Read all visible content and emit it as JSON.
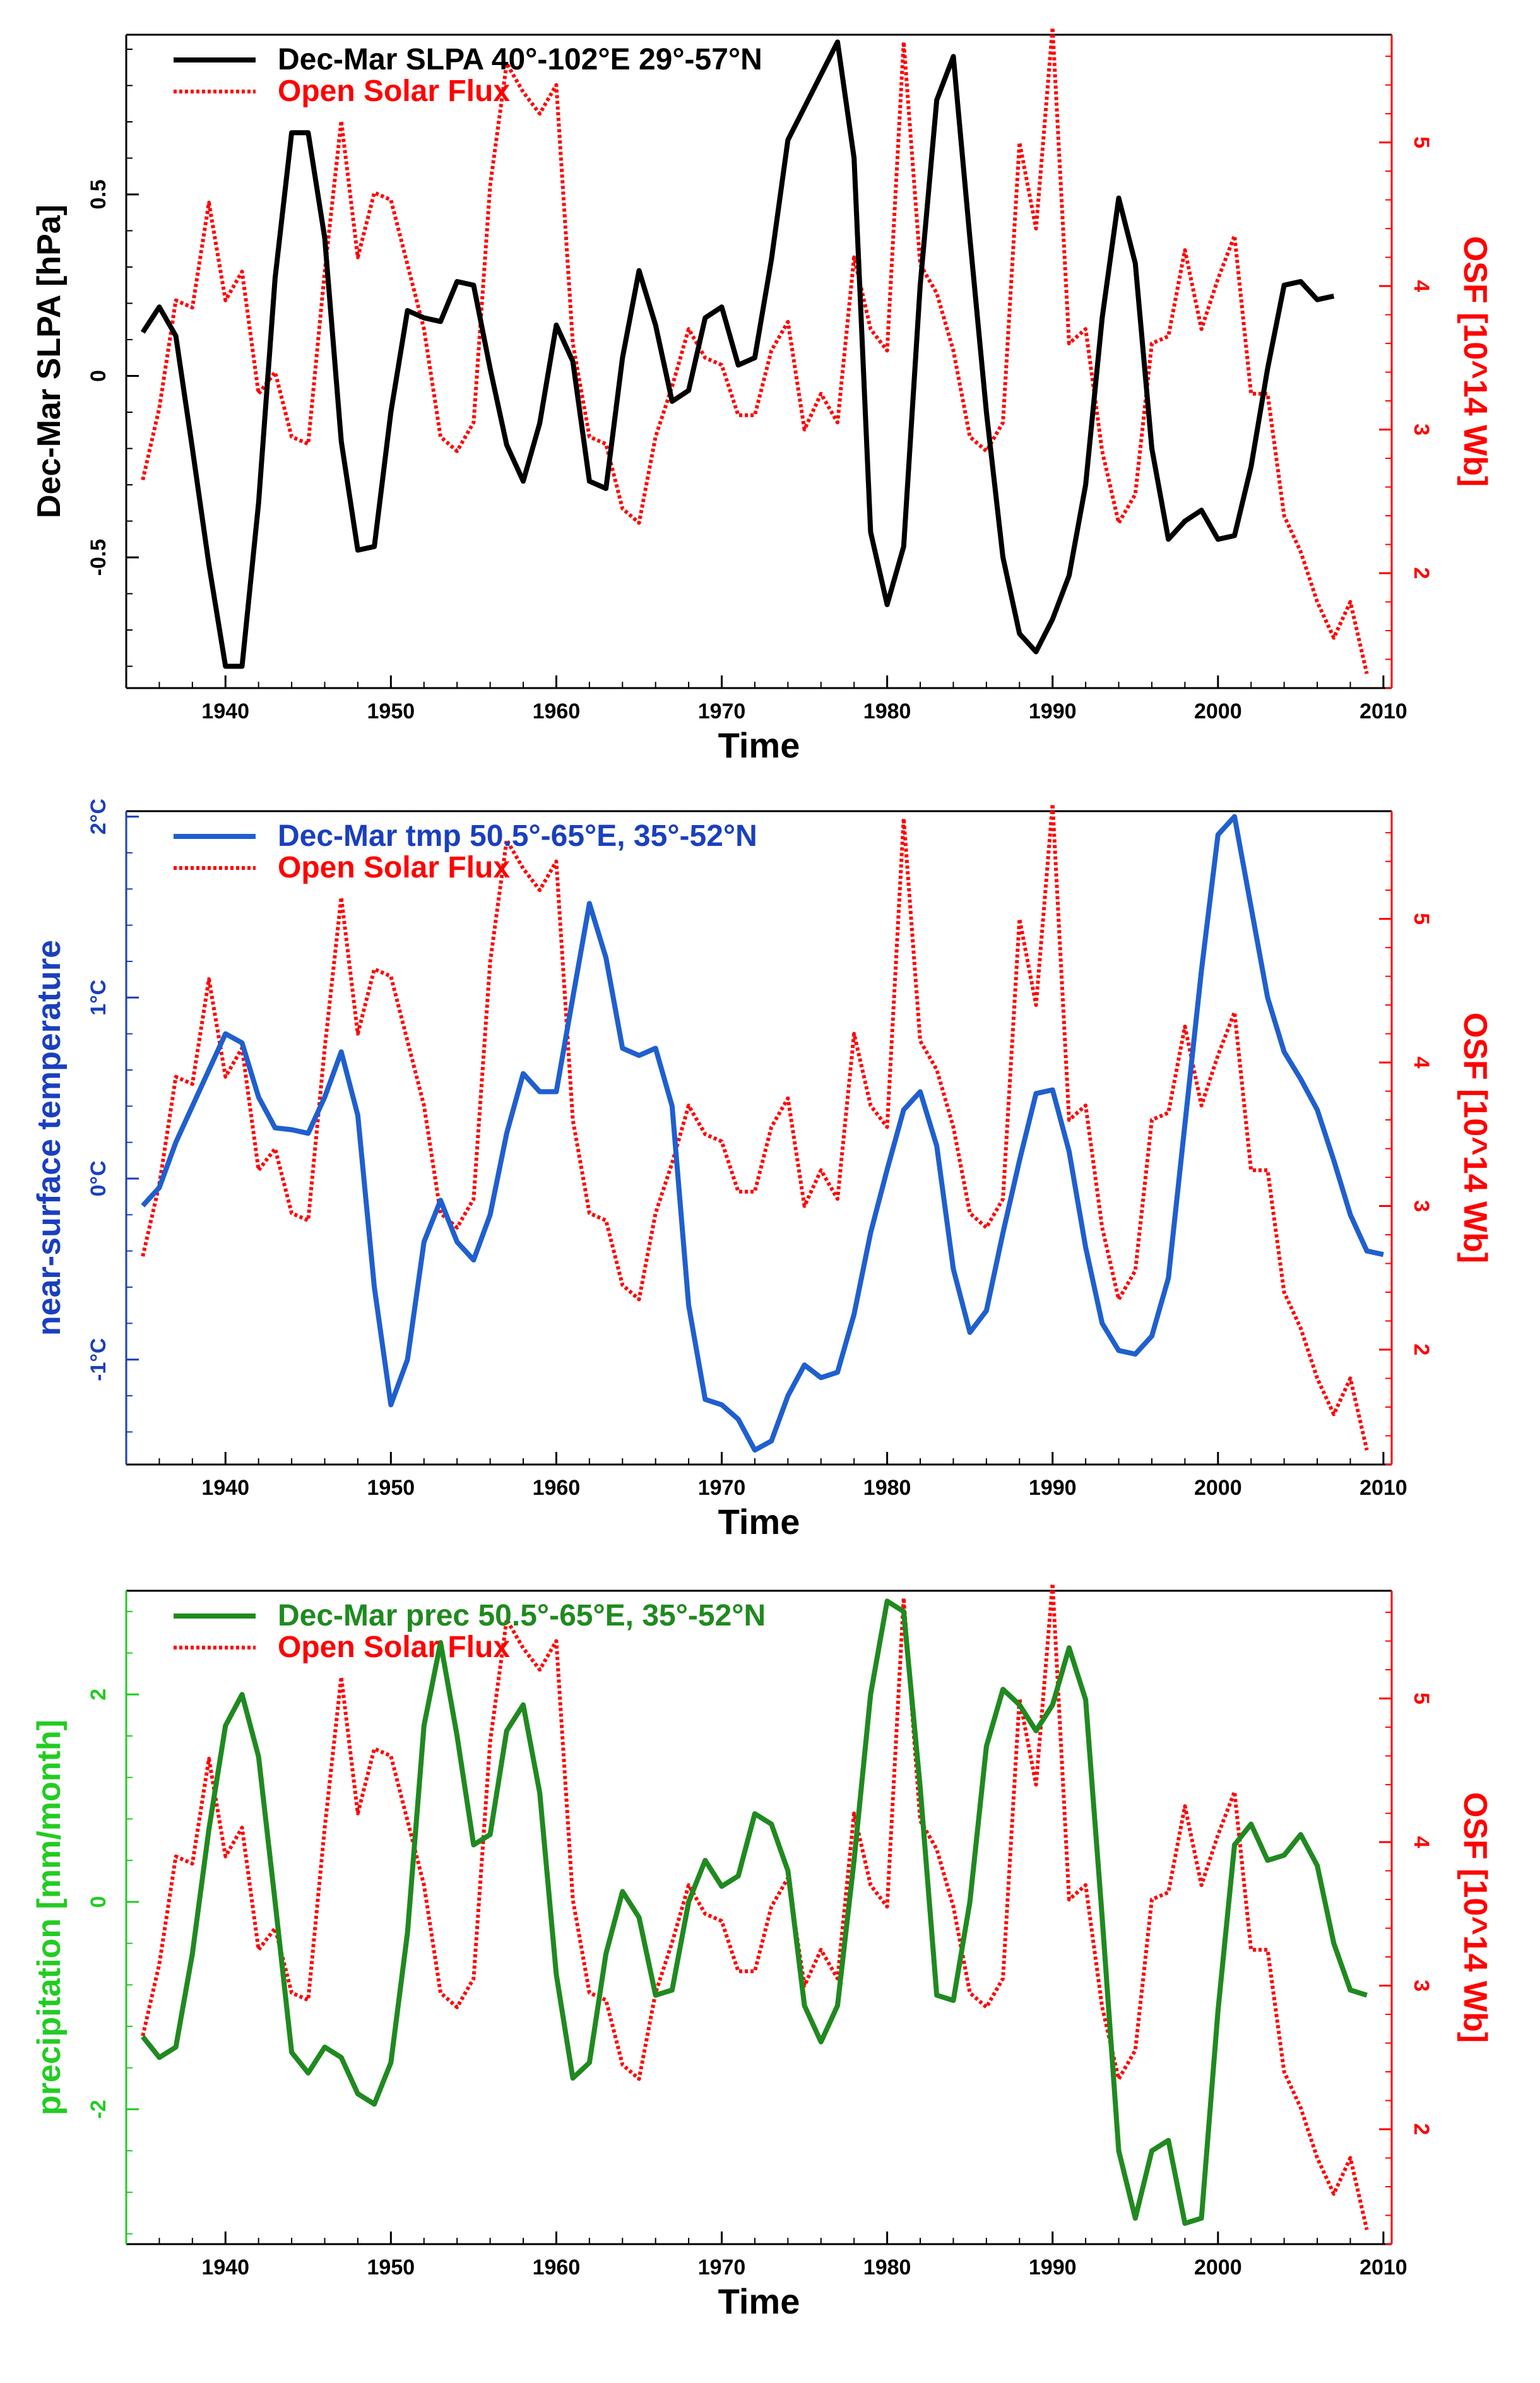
{
  "chart_data": [
    {
      "type": "line",
      "xlabel": "Time",
      "ylabel_left": "Dec-Mar SLPA [hPa]",
      "ylabel_right": "OSF [10^14 Wb]",
      "xlim": [
        1934,
        2010.5
      ],
      "ylim_left": [
        -0.86,
        0.94
      ],
      "ylim_right": [
        1.2,
        5.75
      ],
      "x_ticks": [
        1940,
        1950,
        1960,
        1970,
        1980,
        1990,
        2000,
        2010
      ],
      "x_tick_labels": [
        "1940",
        "1950",
        "1960",
        "1970",
        "1980",
        "1990",
        "2000",
        "2010"
      ],
      "y_left_ticks": [
        -0.5,
        0,
        0.5
      ],
      "y_left_tick_labels": [
        "-0.5",
        "0",
        "0.5"
      ],
      "y_right_ticks": [
        2,
        3,
        4,
        5
      ],
      "y_right_tick_labels": [
        "2",
        "3",
        "4",
        "5"
      ],
      "colors": {
        "main": "#000000",
        "osf": "#ff0000",
        "left_axis": "#000000",
        "right_axis": "#ff0000"
      },
      "series": [
        {
          "name": "Dec-Mar SLPA 40°-102°E 29°-57°N",
          "axis": "left",
          "style": "solid",
          "x_start": 1935,
          "values": [
            0.12,
            0.19,
            0.11,
            -0.2,
            -0.52,
            -0.8,
            -0.8,
            -0.35,
            0.27,
            0.67,
            0.67,
            0.38,
            -0.18,
            -0.48,
            -0.47,
            -0.1,
            0.18,
            0.16,
            0.15,
            0.26,
            0.25,
            0.02,
            -0.19,
            -0.29,
            -0.13,
            0.14,
            0.04,
            -0.29,
            -0.31,
            0.05,
            0.29,
            0.14,
            -0.07,
            -0.04,
            0.16,
            0.19,
            0.03,
            0.05,
            0.32,
            0.65,
            0.74,
            0.83,
            0.92,
            0.6,
            -0.43,
            -0.63,
            -0.47,
            0.25,
            0.76,
            0.88,
            0.38,
            -0.1,
            -0.5,
            -0.71,
            -0.76,
            -0.67,
            -0.55,
            -0.3,
            0.16,
            0.49,
            0.31,
            -0.2,
            -0.45,
            -0.4,
            -0.37,
            -0.45,
            -0.44,
            -0.25,
            0.02,
            0.25,
            0.26,
            0.21,
            0.22
          ]
        },
        {
          "name": "Open Solar Flux",
          "axis": "right",
          "style": "dotted",
          "x_start": 1935,
          "values": [
            2.65,
            3.15,
            3.9,
            3.85,
            4.58,
            3.9,
            4.1,
            3.25,
            3.4,
            2.95,
            2.9,
            4.1,
            5.15,
            4.2,
            4.65,
            4.6,
            4.15,
            3.7,
            2.95,
            2.85,
            3.05,
            4.7,
            5.55,
            5.35,
            5.2,
            5.4,
            3.6,
            2.95,
            2.9,
            2.45,
            2.35,
            2.95,
            3.3,
            3.7,
            3.5,
            3.45,
            3.1,
            3.1,
            3.55,
            3.75,
            3.0,
            3.25,
            3.05,
            4.2,
            3.7,
            3.55,
            5.7,
            4.15,
            3.95,
            3.55,
            2.95,
            2.85,
            3.05,
            5.0,
            4.4,
            5.8,
            3.6,
            3.7,
            2.85,
            2.35,
            2.55,
            3.6,
            3.65,
            4.25,
            3.7,
            4.05,
            4.35,
            3.25,
            3.25,
            2.4,
            2.15,
            1.8,
            1.55,
            1.8,
            1.3
          ]
        }
      ]
    },
    {
      "type": "line",
      "xlabel": "Time",
      "ylabel_left": "near-surface temperature",
      "ylabel_right": "OSF [10^14 Wb]",
      "xlim": [
        1934,
        2010.5
      ],
      "ylim_left": [
        -1.58,
        2.03
      ],
      "ylim_right": [
        1.2,
        5.75
      ],
      "x_ticks": [
        1940,
        1950,
        1960,
        1970,
        1980,
        1990,
        2000,
        2010
      ],
      "x_tick_labels": [
        "1940",
        "1950",
        "1960",
        "1970",
        "1980",
        "1990",
        "2000",
        "2010"
      ],
      "y_left_ticks": [
        -1,
        0,
        1,
        2
      ],
      "y_left_tick_labels": [
        "-1°C",
        "0°C",
        "1°C",
        "2°C"
      ],
      "y_right_ticks": [
        2,
        3,
        4,
        5
      ],
      "y_right_tick_labels": [
        "2",
        "3",
        "4",
        "5"
      ],
      "colors": {
        "main": "#1f5fcf",
        "osf": "#ff0000",
        "left_axis": "#1a3fbf",
        "right_axis": "#ff0000"
      },
      "series": [
        {
          "name": "Dec-Mar tmp 50.5°-65°E, 35°-52°N",
          "axis": "left",
          "style": "solid",
          "x_start": 1935,
          "values": [
            -0.15,
            -0.05,
            0.2,
            0.4,
            0.6,
            0.8,
            0.75,
            0.45,
            0.28,
            0.27,
            0.25,
            0.45,
            0.7,
            0.35,
            -0.6,
            -1.25,
            -1.0,
            -0.35,
            -0.12,
            -0.35,
            -0.45,
            -0.2,
            0.25,
            0.58,
            0.48,
            0.48,
            1.0,
            1.52,
            1.22,
            0.72,
            0.68,
            0.72,
            0.4,
            -0.7,
            -1.22,
            -1.25,
            -1.33,
            -1.5,
            -1.45,
            -1.2,
            -1.03,
            -1.1,
            -1.07,
            -0.75,
            -0.3,
            0.05,
            0.38,
            0.48,
            0.18,
            -0.5,
            -0.85,
            -0.73,
            -0.3,
            0.1,
            0.47,
            0.49,
            0.15,
            -0.38,
            -0.8,
            -0.95,
            -0.97,
            -0.87,
            -0.55,
            0.3,
            1.15,
            1.9,
            2.0,
            1.5,
            1.0,
            0.7,
            0.55,
            0.38,
            0.1,
            -0.2,
            -0.4,
            -0.42
          ]
        },
        {
          "name": "Open Solar Flux",
          "axis": "right",
          "style": "dotted",
          "x_start": 1935,
          "values": [
            2.65,
            3.15,
            3.9,
            3.85,
            4.58,
            3.9,
            4.1,
            3.25,
            3.4,
            2.95,
            2.9,
            4.1,
            5.15,
            4.2,
            4.65,
            4.6,
            4.15,
            3.7,
            2.95,
            2.85,
            3.05,
            4.7,
            5.55,
            5.35,
            5.2,
            5.4,
            3.6,
            2.95,
            2.9,
            2.45,
            2.35,
            2.95,
            3.3,
            3.7,
            3.5,
            3.45,
            3.1,
            3.1,
            3.55,
            3.75,
            3.0,
            3.25,
            3.05,
            4.2,
            3.7,
            3.55,
            5.7,
            4.15,
            3.95,
            3.55,
            2.95,
            2.85,
            3.05,
            5.0,
            4.4,
            5.8,
            3.6,
            3.7,
            2.85,
            2.35,
            2.55,
            3.6,
            3.65,
            4.25,
            3.7,
            4.05,
            4.35,
            3.25,
            3.25,
            2.4,
            2.15,
            1.8,
            1.55,
            1.8,
            1.3
          ]
        }
      ]
    },
    {
      "type": "line",
      "xlabel": "Time",
      "ylabel_left": "precipitation [mm/month]",
      "ylabel_right": "OSF [10^14 Wb]",
      "xlim": [
        1934,
        2010.5
      ],
      "ylim_left": [
        -3.3,
        3.0
      ],
      "ylim_right": [
        1.2,
        5.75
      ],
      "x_ticks": [
        1940,
        1950,
        1960,
        1970,
        1980,
        1990,
        2000,
        2010
      ],
      "x_tick_labels": [
        "1940",
        "1950",
        "1960",
        "1970",
        "1980",
        "1990",
        "2000",
        "2010"
      ],
      "y_left_ticks": [
        -2,
        0,
        2
      ],
      "y_left_tick_labels": [
        "-2",
        "0",
        "2"
      ],
      "y_right_ticks": [
        2,
        3,
        4,
        5
      ],
      "y_right_tick_labels": [
        "2",
        "3",
        "4",
        "5"
      ],
      "colors": {
        "main": "#1f8a1f",
        "osf": "#ff0000",
        "left_axis": "#22cc22",
        "right_axis": "#ff0000"
      },
      "series": [
        {
          "name": "Dec-Mar prec 50.5°-65°E, 35°-52°N",
          "axis": "left",
          "style": "solid",
          "x_start": 1935,
          "values": [
            -1.3,
            -1.5,
            -1.4,
            -0.5,
            0.7,
            1.7,
            2.0,
            1.4,
            0.0,
            -1.45,
            -1.65,
            -1.4,
            -1.5,
            -1.85,
            -1.95,
            -1.55,
            -0.3,
            1.7,
            2.5,
            1.6,
            0.55,
            0.65,
            1.65,
            1.9,
            1.05,
            -0.7,
            -1.7,
            -1.55,
            -0.5,
            0.1,
            -0.15,
            -0.9,
            -0.85,
            0.0,
            0.4,
            0.15,
            0.25,
            0.85,
            0.75,
            0.3,
            -1.0,
            -1.35,
            -1.0,
            0.4,
            2.0,
            2.9,
            2.8,
            1.1,
            -0.9,
            -0.95,
            0.0,
            1.5,
            2.05,
            1.9,
            1.65,
            1.9,
            2.45,
            1.95,
            -0.15,
            -2.4,
            -3.05,
            -2.4,
            -2.3,
            -3.1,
            -3.05,
            -1.05,
            0.55,
            0.75,
            0.4,
            0.45,
            0.65,
            0.35,
            -0.4,
            -0.85,
            -0.9
          ]
        },
        {
          "name": "Open Solar Flux",
          "axis": "right",
          "style": "dotted",
          "x_start": 1935,
          "values": [
            2.65,
            3.15,
            3.9,
            3.85,
            4.58,
            3.9,
            4.1,
            3.25,
            3.4,
            2.95,
            2.9,
            4.1,
            5.15,
            4.2,
            4.65,
            4.6,
            4.15,
            3.7,
            2.95,
            2.85,
            3.05,
            4.7,
            5.55,
            5.35,
            5.2,
            5.4,
            3.6,
            2.95,
            2.9,
            2.45,
            2.35,
            2.95,
            3.3,
            3.7,
            3.5,
            3.45,
            3.1,
            3.1,
            3.55,
            3.75,
            3.0,
            3.25,
            3.05,
            4.2,
            3.7,
            3.55,
            5.7,
            4.15,
            3.95,
            3.55,
            2.95,
            2.85,
            3.05,
            5.0,
            4.4,
            5.8,
            3.6,
            3.7,
            2.85,
            2.35,
            2.55,
            3.6,
            3.65,
            4.25,
            3.7,
            4.05,
            4.35,
            3.25,
            3.25,
            2.4,
            2.15,
            1.8,
            1.55,
            1.8,
            1.3
          ]
        }
      ]
    }
  ]
}
